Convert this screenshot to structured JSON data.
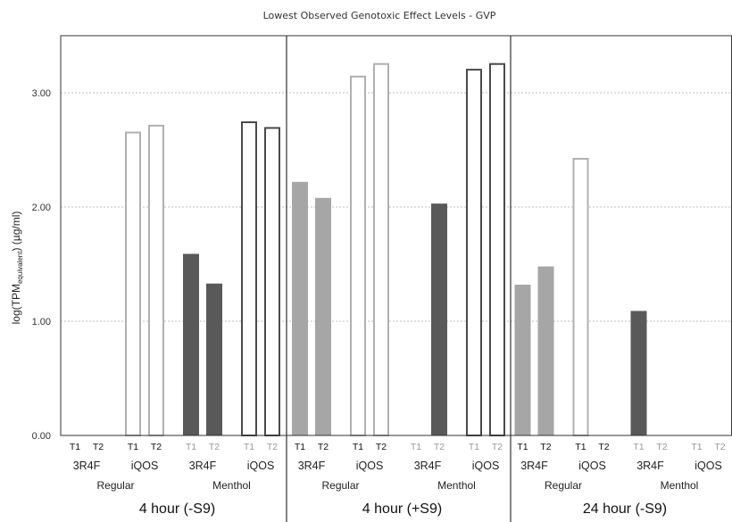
{
  "chart_data": {
    "type": "bar",
    "title": "Lowest Observed Genotoxic Effect Levels - GVP",
    "ylabel": {
      "main": "log(TPM",
      "sub": "equivalent",
      "suffix": ") (µg/ml)"
    },
    "ylim": [
      0,
      3.5
    ],
    "yticks": [
      {
        "value": 0,
        "label": "0.00"
      },
      {
        "value": 1,
        "label": "1.00"
      },
      {
        "value": 2,
        "label": "2.00"
      },
      {
        "value": 3,
        "label": "3.00"
      }
    ],
    "grid": true,
    "colors": {
      "regular_3r4f": "#a6a6a6",
      "menthol_3r4f": "#595959",
      "iqos_fill": "#ffffff",
      "iqos_regular_edge": "#b0b0b0",
      "iqos_menthol_edge": "#4a4a4a",
      "grid": "#bfbfbf",
      "frame": "#333333",
      "faded_label": "#999999"
    },
    "panels": [
      {
        "label": "4 hour (-S9)",
        "groups": [
          {
            "label": "Regular",
            "products": [
              {
                "label": "3R4F",
                "style": "regular_3r4f",
                "bars": [
                  {
                    "label": "T1",
                    "value": null
                  },
                  {
                    "label": "T2",
                    "value": null
                  }
                ]
              },
              {
                "label": "iQOS",
                "style": "iqos_regular",
                "bars": [
                  {
                    "label": "T1",
                    "value": 2.66
                  },
                  {
                    "label": "T2",
                    "value": 2.72
                  }
                ]
              }
            ]
          },
          {
            "label": "Menthol",
            "products": [
              {
                "label": "3R4F",
                "style": "menthol_3r4f",
                "bars": [
                  {
                    "label": "T1",
                    "value": 1.59
                  },
                  {
                    "label": "T2",
                    "value": 1.33
                  }
                ]
              },
              {
                "label": "iQOS",
                "style": "iqos_menthol",
                "bars": [
                  {
                    "label": "T1",
                    "value": 2.75
                  },
                  {
                    "label": "T2",
                    "value": 2.7
                  }
                ]
              }
            ]
          }
        ]
      },
      {
        "label": "4 hour (+S9)",
        "groups": [
          {
            "label": "Regular",
            "products": [
              {
                "label": "3R4F",
                "style": "regular_3r4f",
                "bars": [
                  {
                    "label": "T1",
                    "value": 2.22
                  },
                  {
                    "label": "T2",
                    "value": 2.08
                  }
                ]
              },
              {
                "label": "iQOS",
                "style": "iqos_regular",
                "bars": [
                  {
                    "label": "T1",
                    "value": 3.15
                  },
                  {
                    "label": "T2",
                    "value": 3.26
                  }
                ]
              }
            ]
          },
          {
            "label": "Menthol",
            "products": [
              {
                "label": "3R4F",
                "style": "menthol_3r4f",
                "bars": [
                  {
                    "label": "T1",
                    "value": null
                  },
                  {
                    "label": "T2",
                    "value": 2.03
                  }
                ]
              },
              {
                "label": "iQOS",
                "style": "iqos_menthol",
                "bars": [
                  {
                    "label": "T1",
                    "value": 3.21
                  },
                  {
                    "label": "T2",
                    "value": 3.26
                  }
                ]
              }
            ]
          }
        ]
      },
      {
        "label": "24 hour (-S9)",
        "groups": [
          {
            "label": "Regular",
            "products": [
              {
                "label": "3R4F",
                "style": "regular_3r4f",
                "bars": [
                  {
                    "label": "T1",
                    "value": 1.32
                  },
                  {
                    "label": "T2",
                    "value": 1.48
                  }
                ]
              },
              {
                "label": "iQOS",
                "style": "iqos_regular",
                "bars": [
                  {
                    "label": "T1",
                    "value": 2.43
                  },
                  {
                    "label": "T2",
                    "value": null
                  }
                ]
              }
            ]
          },
          {
            "label": "Menthol",
            "products": [
              {
                "label": "3R4F",
                "style": "menthol_3r4f",
                "bars": [
                  {
                    "label": "T1",
                    "value": 1.09
                  },
                  {
                    "label": "T2",
                    "value": null
                  }
                ]
              },
              {
                "label": "iQOS",
                "style": "iqos_menthol",
                "bars": [
                  {
                    "label": "T1",
                    "value": null
                  },
                  {
                    "label": "T2",
                    "value": null
                  }
                ]
              }
            ]
          }
        ]
      }
    ]
  }
}
